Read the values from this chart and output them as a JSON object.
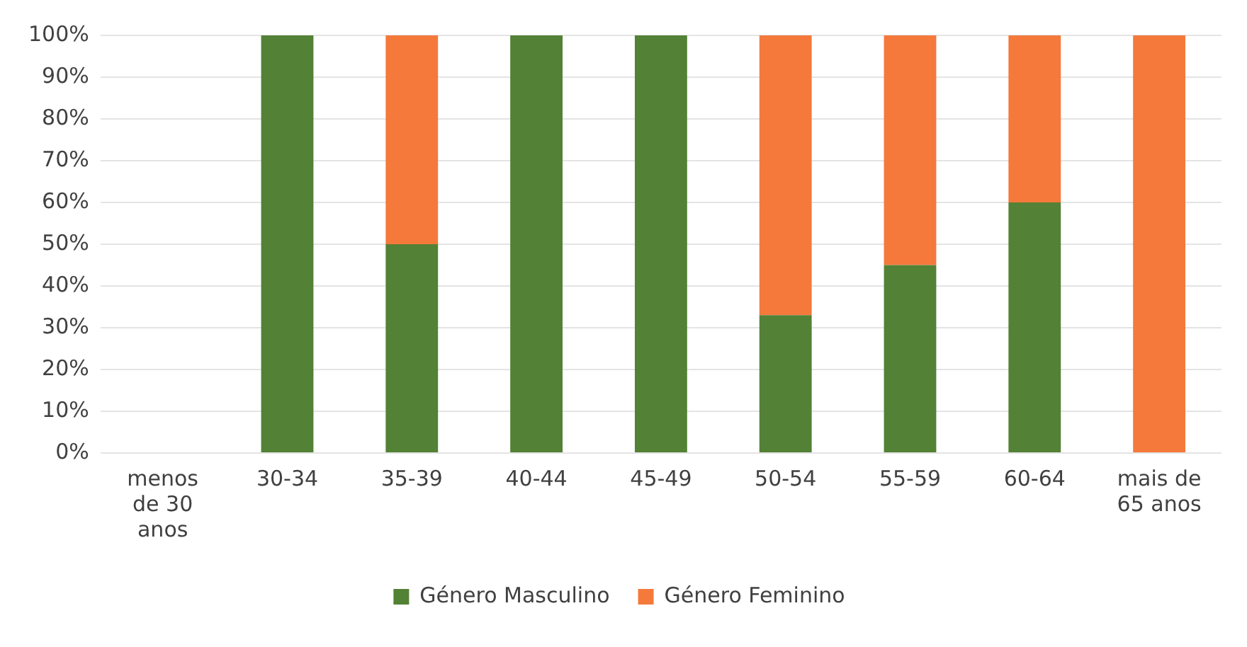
{
  "chart_data": {
    "type": "bar",
    "stacked": true,
    "categories": [
      "menos de 30 anos",
      "30-34",
      "35-39",
      "40-44",
      "45-49",
      "50-54",
      "55-59",
      "60-64",
      "mais de 65 anos"
    ],
    "series": [
      {
        "name": "Género Masculino",
        "color": "#538135",
        "values": [
          0,
          100,
          50,
          100,
          100,
          33,
          45,
          60,
          0
        ]
      },
      {
        "name": "Género Feminino",
        "color": "#f4793b",
        "values": [
          0,
          0,
          50,
          0,
          0,
          67,
          55,
          40,
          100
        ]
      }
    ],
    "ylim": [
      0,
      100
    ],
    "yticks": [
      {
        "value": 0,
        "label": "0%"
      },
      {
        "value": 10,
        "label": "10%"
      },
      {
        "value": 20,
        "label": "20%"
      },
      {
        "value": 30,
        "label": "30%"
      },
      {
        "value": 40,
        "label": "40%"
      },
      {
        "value": 50,
        "label": "50%"
      },
      {
        "value": 60,
        "label": "60%"
      },
      {
        "value": 70,
        "label": "70%"
      },
      {
        "value": 80,
        "label": "80%"
      },
      {
        "value": 90,
        "label": "90%"
      },
      {
        "value": 100,
        "label": "100%"
      }
    ],
    "grid": "y",
    "legend": "bottom"
  }
}
